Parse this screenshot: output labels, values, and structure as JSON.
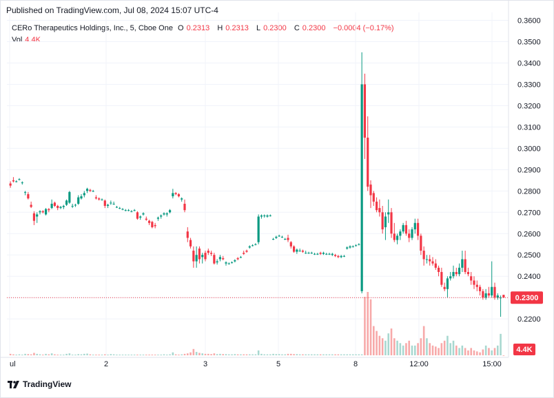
{
  "header": {
    "published": "Published on TradingView.com, Jul 08, 2024 15:07 UTC-4"
  },
  "legend": {
    "title": "CERo Therapeutics Holdings, Inc., 5, Cboe One",
    "o_label": "O",
    "o_val": "0.2313",
    "h_label": "H",
    "h_val": "0.2313",
    "l_label": "L",
    "l_val": "0.2300",
    "c_label": "C",
    "c_val": "0.2300",
    "change": "−0.0004 (−0.17%)",
    "vol_label": "Vol",
    "vol_val": "4.4K"
  },
  "footer": {
    "brand": "TradingView"
  },
  "colors": {
    "up": "#089981",
    "down": "#f23645",
    "up_vol": "#a8d8d0",
    "down_vol": "#f7a9a9",
    "grid": "#f0f3fa"
  },
  "chart_data": {
    "type": "candlestick",
    "y_ticks": [
      "0.2200",
      "0.2300",
      "0.2400",
      "0.2500",
      "0.2600",
      "0.2700",
      "0.2800",
      "0.2900",
      "0.3000",
      "0.3100",
      "0.3200",
      "0.3300",
      "0.3400",
      "0.3500",
      "0.3600"
    ],
    "ylim": [
      0.2165,
      0.3605
    ],
    "x_ticks": [
      "ul",
      "2",
      "3",
      "5",
      "8",
      "12:00",
      "15:00"
    ],
    "last_price": "0.2300",
    "last_volume": "4.4K",
    "ohlc": [
      [
        0.2835,
        0.2845,
        0.2815,
        0.2825
      ],
      [
        0.285,
        0.2865,
        0.284,
        0.2845
      ],
      [
        0.2845,
        0.285,
        0.284,
        0.2845
      ],
      [
        0.2855,
        0.286,
        0.285,
        0.2855
      ],
      [
        0.284,
        0.2845,
        0.283,
        0.284
      ],
      [
        0.2795,
        0.28,
        0.278,
        0.2795
      ],
      [
        0.2785,
        0.2795,
        0.276,
        0.2765
      ],
      [
        0.2735,
        0.275,
        0.272,
        0.2725
      ],
      [
        0.2695,
        0.2705,
        0.264,
        0.266
      ],
      [
        0.268,
        0.27,
        0.265,
        0.269
      ],
      [
        0.27,
        0.271,
        0.269,
        0.2705
      ],
      [
        0.2705,
        0.271,
        0.2695,
        0.27
      ],
      [
        0.269,
        0.272,
        0.2685,
        0.2715
      ],
      [
        0.2715,
        0.272,
        0.27,
        0.271
      ],
      [
        0.272,
        0.276,
        0.2715,
        0.274
      ],
      [
        0.2745,
        0.275,
        0.2725,
        0.273
      ],
      [
        0.273,
        0.2735,
        0.271,
        0.272
      ],
      [
        0.272,
        0.273,
        0.2715,
        0.2725
      ],
      [
        0.2725,
        0.2735,
        0.2715,
        0.273
      ],
      [
        0.2735,
        0.276,
        0.273,
        0.2755
      ],
      [
        0.2745,
        0.28,
        0.274,
        0.2795
      ],
      [
        0.273,
        0.274,
        0.272,
        0.273
      ],
      [
        0.2735,
        0.274,
        0.2725,
        0.2735
      ],
      [
        0.274,
        0.278,
        0.2735,
        0.277
      ],
      [
        0.2765,
        0.2785,
        0.276,
        0.2775
      ],
      [
        0.278,
        0.28,
        0.277,
        0.279
      ],
      [
        0.28,
        0.2815,
        0.279,
        0.281
      ],
      [
        0.2805,
        0.281,
        0.2795,
        0.28
      ],
      [
        0.28,
        0.2805,
        0.2795,
        0.28
      ],
      [
        0.277,
        0.278,
        0.276,
        0.2765
      ],
      [
        0.2765,
        0.277,
        0.2755,
        0.276
      ],
      [
        0.276,
        0.2765,
        0.2755,
        0.276
      ],
      [
        0.2755,
        0.276,
        0.272,
        0.273
      ],
      [
        0.273,
        0.274,
        0.272,
        0.2735
      ],
      [
        0.2745,
        0.2755,
        0.2735,
        0.2745
      ],
      [
        0.274,
        0.275,
        0.2735,
        0.274
      ],
      [
        0.2725,
        0.273,
        0.272,
        0.2725
      ],
      [
        0.272,
        0.2725,
        0.2715,
        0.272
      ],
      [
        0.2715,
        0.272,
        0.271,
        0.2715
      ],
      [
        0.271,
        0.2715,
        0.2705,
        0.271
      ],
      [
        0.271,
        0.2715,
        0.2705,
        0.271
      ],
      [
        0.2705,
        0.271,
        0.27,
        0.2705
      ],
      [
        0.271,
        0.2715,
        0.2705,
        0.271
      ],
      [
        0.27,
        0.2705,
        0.2665,
        0.267
      ],
      [
        0.2675,
        0.2685,
        0.2665,
        0.268
      ],
      [
        0.269,
        0.27,
        0.2685,
        0.2695
      ],
      [
        0.267,
        0.268,
        0.266,
        0.2665
      ],
      [
        0.266,
        0.2665,
        0.264,
        0.265
      ],
      [
        0.2655,
        0.266,
        0.2625,
        0.263
      ],
      [
        0.264,
        0.265,
        0.2625,
        0.2635
      ],
      [
        0.267,
        0.268,
        0.266,
        0.2675
      ],
      [
        0.268,
        0.269,
        0.267,
        0.2685
      ],
      [
        0.269,
        0.27,
        0.2685,
        0.2695
      ],
      [
        0.269,
        0.27,
        0.268,
        0.2695
      ],
      [
        0.27,
        0.2715,
        0.2695,
        0.271
      ],
      [
        0.2775,
        0.281,
        0.2765,
        0.279
      ],
      [
        0.279,
        0.2795,
        0.278,
        0.2785
      ],
      [
        0.2785,
        0.279,
        0.277,
        0.2775
      ],
      [
        0.276,
        0.277,
        0.275,
        0.2765
      ],
      [
        0.274,
        0.276,
        0.27,
        0.271
      ],
      [
        0.261,
        0.263,
        0.256,
        0.258
      ],
      [
        0.257,
        0.258,
        0.253,
        0.254
      ],
      [
        0.252,
        0.254,
        0.244,
        0.247
      ],
      [
        0.247,
        0.254,
        0.244,
        0.25
      ],
      [
        0.253,
        0.254,
        0.246,
        0.248
      ],
      [
        0.249,
        0.251,
        0.246,
        0.25
      ],
      [
        0.251,
        0.252,
        0.247,
        0.248
      ],
      [
        0.252,
        0.253,
        0.25,
        0.251
      ],
      [
        0.251,
        0.252,
        0.2495,
        0.2505
      ],
      [
        0.25,
        0.251,
        0.2455,
        0.246
      ],
      [
        0.2465,
        0.248,
        0.2455,
        0.247
      ],
      [
        0.248,
        0.25,
        0.247,
        0.249
      ],
      [
        0.2485,
        0.2495,
        0.2475,
        0.248
      ],
      [
        0.246,
        0.247,
        0.245,
        0.2465
      ],
      [
        0.246,
        0.2465,
        0.2455,
        0.246
      ],
      [
        0.2465,
        0.247,
        0.246,
        0.2465
      ],
      [
        0.247,
        0.248,
        0.2465,
        0.2475
      ],
      [
        0.2485,
        0.249,
        0.2475,
        0.248
      ],
      [
        0.249,
        0.2495,
        0.2485,
        0.249
      ],
      [
        0.251,
        0.252,
        0.25,
        0.2505
      ],
      [
        0.252,
        0.2525,
        0.251,
        0.2515
      ],
      [
        0.2535,
        0.2545,
        0.253,
        0.254
      ],
      [
        0.2545,
        0.255,
        0.254,
        0.2545
      ],
      [
        0.255,
        0.2555,
        0.2545,
        0.255
      ],
      [
        0.256,
        0.269,
        0.255,
        0.268
      ],
      [
        0.268,
        0.269,
        0.267,
        0.2685
      ],
      [
        0.2685,
        0.269,
        0.2675,
        0.2685
      ],
      [
        0.268,
        0.269,
        0.2675,
        0.2685
      ],
      [
        0.2685,
        0.269,
        0.268,
        0.2685
      ],
      [
        0.2575,
        0.258,
        0.257,
        0.2575
      ],
      [
        0.258,
        0.259,
        0.2575,
        0.2585
      ],
      [
        0.259,
        0.2595,
        0.2585,
        0.259
      ],
      [
        0.2585,
        0.259,
        0.258,
        0.2585
      ],
      [
        0.2575,
        0.258,
        0.257,
        0.2575
      ],
      [
        0.258,
        0.2595,
        0.256,
        0.257
      ],
      [
        0.256,
        0.2565,
        0.253,
        0.254
      ],
      [
        0.254,
        0.2545,
        0.251,
        0.2515
      ],
      [
        0.2515,
        0.253,
        0.2505,
        0.2525
      ],
      [
        0.252,
        0.253,
        0.2515,
        0.252
      ],
      [
        0.252,
        0.2525,
        0.251,
        0.2515
      ],
      [
        0.251,
        0.252,
        0.2505,
        0.251
      ],
      [
        0.251,
        0.2515,
        0.2505,
        0.251
      ],
      [
        0.251,
        0.2515,
        0.2505,
        0.251
      ],
      [
        0.2505,
        0.251,
        0.25,
        0.2505
      ],
      [
        0.2505,
        0.251,
        0.25,
        0.2505
      ],
      [
        0.251,
        0.2515,
        0.25,
        0.2505
      ],
      [
        0.2505,
        0.2515,
        0.25,
        0.251
      ],
      [
        0.2505,
        0.251,
        0.25,
        0.2505
      ],
      [
        0.2505,
        0.251,
        0.25,
        0.2505
      ],
      [
        0.25,
        0.251,
        0.2495,
        0.2505
      ],
      [
        0.25,
        0.2505,
        0.249,
        0.2495
      ],
      [
        0.2495,
        0.25,
        0.2485,
        0.249
      ],
      [
        0.249,
        0.25,
        0.2485,
        0.2495
      ],
      [
        0.2495,
        0.25,
        0.249,
        0.2495
      ],
      [
        0.253,
        0.254,
        0.2525,
        0.2535
      ],
      [
        0.2535,
        0.2545,
        0.253,
        0.254
      ],
      [
        0.254,
        0.2545,
        0.2535,
        0.254
      ],
      [
        0.2545,
        0.255,
        0.254,
        0.2545
      ],
      [
        0.255,
        0.2555,
        0.2545,
        0.255
      ],
      [
        0.233,
        0.345,
        0.232,
        0.33
      ],
      [
        0.33,
        0.335,
        0.295,
        0.305
      ],
      [
        0.305,
        0.315,
        0.28,
        0.282
      ],
      [
        0.283,
        0.285,
        0.272,
        0.278
      ],
      [
        0.279,
        0.28,
        0.273,
        0.275
      ],
      [
        0.275,
        0.277,
        0.27,
        0.271
      ],
      [
        0.272,
        0.276,
        0.268,
        0.27
      ],
      [
        0.27,
        0.273,
        0.26,
        0.262
      ],
      [
        0.263,
        0.27,
        0.257,
        0.268
      ],
      [
        0.269,
        0.276,
        0.265,
        0.27
      ],
      [
        0.27,
        0.272,
        0.258,
        0.26
      ],
      [
        0.26,
        0.265,
        0.256,
        0.257
      ],
      [
        0.257,
        0.26,
        0.255,
        0.259
      ],
      [
        0.259,
        0.262,
        0.257,
        0.261
      ],
      [
        0.261,
        0.265,
        0.26,
        0.264
      ],
      [
        0.264,
        0.266,
        0.259,
        0.26
      ],
      [
        0.26,
        0.262,
        0.256,
        0.258
      ],
      [
        0.258,
        0.263,
        0.257,
        0.262
      ],
      [
        0.262,
        0.267,
        0.26,
        0.265
      ],
      [
        0.265,
        0.267,
        0.257,
        0.259
      ],
      [
        0.259,
        0.26,
        0.25,
        0.252
      ],
      [
        0.252,
        0.254,
        0.245,
        0.248
      ],
      [
        0.248,
        0.25,
        0.246,
        0.248
      ],
      [
        0.248,
        0.25,
        0.245,
        0.247
      ],
      [
        0.247,
        0.249,
        0.245,
        0.246
      ],
      [
        0.246,
        0.248,
        0.243,
        0.244
      ],
      [
        0.244,
        0.245,
        0.24,
        0.242
      ],
      [
        0.242,
        0.244,
        0.235,
        0.236
      ],
      [
        0.235,
        0.237,
        0.233,
        0.234
      ],
      [
        0.234,
        0.24,
        0.23,
        0.239
      ],
      [
        0.239,
        0.242,
        0.238,
        0.24
      ],
      [
        0.24,
        0.245,
        0.239,
        0.242
      ],
      [
        0.242,
        0.244,
        0.24,
        0.241
      ],
      [
        0.241,
        0.246,
        0.24,
        0.244
      ],
      [
        0.244,
        0.252,
        0.242,
        0.248
      ],
      [
        0.248,
        0.252,
        0.241,
        0.242
      ],
      [
        0.242,
        0.244,
        0.24,
        0.241
      ],
      [
        0.24,
        0.242,
        0.236,
        0.238
      ],
      [
        0.238,
        0.24,
        0.234,
        0.236
      ],
      [
        0.236,
        0.238,
        0.233,
        0.235
      ],
      [
        0.235,
        0.236,
        0.231,
        0.233
      ],
      [
        0.233,
        0.234,
        0.229,
        0.23
      ],
      [
        0.23,
        0.234,
        0.229,
        0.232
      ],
      [
        0.232,
        0.235,
        0.23,
        0.231
      ],
      [
        0.231,
        0.247,
        0.23,
        0.235
      ],
      [
        0.235,
        0.237,
        0.229,
        0.23
      ],
      [
        0.23,
        0.232,
        0.229,
        0.231
      ],
      [
        0.23,
        0.231,
        0.221,
        0.23
      ],
      [
        0.2313,
        0.2313,
        0.23,
        0.23
      ]
    ],
    "volume": [
      300,
      200,
      150,
      200,
      150,
      300,
      250,
      200,
      500,
      300,
      200,
      150,
      300,
      200,
      400,
      200,
      150,
      150,
      150,
      300,
      400,
      150,
      150,
      250,
      200,
      300,
      350,
      200,
      150,
      150,
      150,
      150,
      200,
      150,
      250,
      200,
      150,
      150,
      150,
      150,
      150,
      150,
      150,
      150,
      150,
      150,
      150,
      150,
      150,
      150,
      150,
      150,
      200,
      150,
      200,
      600,
      200,
      150,
      200,
      300,
      400,
      600,
      1300,
      700,
      500,
      400,
      300,
      300,
      250,
      400,
      250,
      300,
      250,
      250,
      200,
      200,
      250,
      200,
      200,
      200,
      200,
      200,
      200,
      200,
      1000,
      300,
      200,
      200,
      200,
      300,
      250,
      250,
      200,
      200,
      300,
      300,
      250,
      250,
      200,
      200,
      200,
      200,
      200,
      200,
      200,
      200,
      200,
      200,
      200,
      200,
      200,
      200,
      200,
      200,
      200,
      200,
      200,
      200,
      200,
      200,
      12000,
      13000,
      11500,
      6000,
      5000,
      4000,
      3500,
      3000,
      4500,
      5500,
      3500,
      3000,
      2500,
      2000,
      2500,
      3000,
      2000,
      2000,
      2500,
      3500,
      6000,
      3500,
      2500,
      2000,
      1800,
      1500,
      2500,
      3000,
      4000,
      2500,
      3000,
      2000,
      1500,
      2000,
      1500,
      1000,
      1500,
      1000,
      800,
      600,
      1200,
      2000,
      1500,
      1000,
      1500,
      2000,
      4400
    ],
    "volume_max": 13000
  }
}
